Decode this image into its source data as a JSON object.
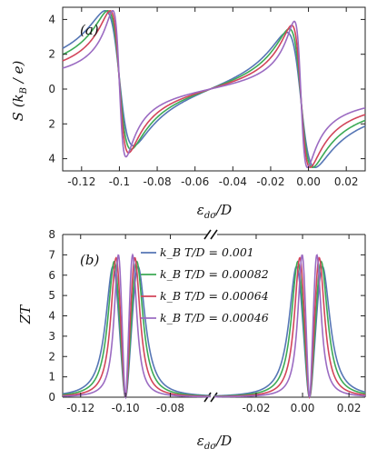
{
  "chart_data": [
    {
      "type": "line",
      "panel_label": "(a)",
      "ylabel": "S (k_B / e)",
      "xlabel": "ε_dσ/D",
      "xlim": [
        -0.13,
        0.03
      ],
      "ylim": [
        -4.7,
        4.7
      ],
      "x_ticks": [
        -0.12,
        -0.1,
        -0.08,
        -0.06,
        -0.04,
        -0.02,
        0.0,
        0.02
      ],
      "x_tick_labels": [
        "-0.12",
        "-0.1",
        "-0.08",
        "-0.06",
        "-0.04",
        "-0.02",
        "0.00",
        "0.02"
      ],
      "y_ticks": [
        4,
        2,
        0,
        -2,
        -4
      ],
      "y_tick_labels": [
        "4",
        "2",
        "0",
        "2",
        "4"
      ],
      "grid": false,
      "series": [
        {
          "color": "#5676b5",
          "width": 0.0076,
          "centers": [
            -0.1,
            -0.004
          ]
        },
        {
          "color": "#3daa55",
          "width": 0.0062,
          "centers": [
            -0.1,
            -0.004
          ]
        },
        {
          "color": "#d2455a",
          "width": 0.0049,
          "centers": [
            -0.1,
            -0.004
          ]
        },
        {
          "color": "#9b6bc2",
          "width": 0.0035,
          "centers": [
            -0.1,
            -0.004
          ]
        }
      ],
      "peak_value": 4.5
    },
    {
      "type": "line",
      "panel_label": "(b)",
      "ylabel": "ZT",
      "xlabel": "ε_dσ/D",
      "broken_x_axis": true,
      "segments": [
        {
          "xlim": [
            -0.128,
            -0.062
          ],
          "x_ticks": [
            -0.12,
            -0.1,
            -0.08
          ],
          "x_tick_labels": [
            "-0.12",
            "-0.10",
            "-0.08"
          ]
        },
        {
          "xlim": [
            -0.038,
            0.027
          ],
          "x_ticks": [
            -0.02,
            0.0,
            0.02
          ],
          "x_tick_labels": [
            "-0.02",
            "0.00",
            "0.02"
          ]
        }
      ],
      "ylim": [
        0,
        8
      ],
      "y_ticks": [
        0,
        1,
        2,
        3,
        4,
        5,
        6,
        7,
        8
      ],
      "y_tick_labels": [
        "0",
        "1",
        "2",
        "3",
        "4",
        "5",
        "6",
        "7",
        "8"
      ],
      "legend_position": "top-center",
      "legend": [
        {
          "label": "k_B T/D = 0.001",
          "color": "#5676b5"
        },
        {
          "label": "k_B T/D = 0.00082",
          "color": "#3daa55"
        },
        {
          "label": "k_B T/D = 0.00064",
          "color": "#d2455a"
        },
        {
          "label": "k_B T/D = 0.00046",
          "color": "#9b6bc2"
        }
      ],
      "series": [
        {
          "color": "#5676b5",
          "peak": 7.2,
          "peaks_x": [
            -0.1053,
            -0.0947,
            -0.0023,
            0.0083
          ]
        },
        {
          "color": "#3daa55",
          "peak": 7.4,
          "peaks_x": [
            -0.1048,
            -0.0952,
            -0.0018,
            0.0078
          ]
        },
        {
          "color": "#d2455a",
          "peak": 7.6,
          "peaks_x": [
            -0.104,
            -0.096,
            -0.001,
            0.007
          ]
        },
        {
          "color": "#9b6bc2",
          "peak": 7.85,
          "peaks_x": [
            -0.103,
            -0.097,
            0.0,
            0.006
          ]
        }
      ]
    }
  ]
}
